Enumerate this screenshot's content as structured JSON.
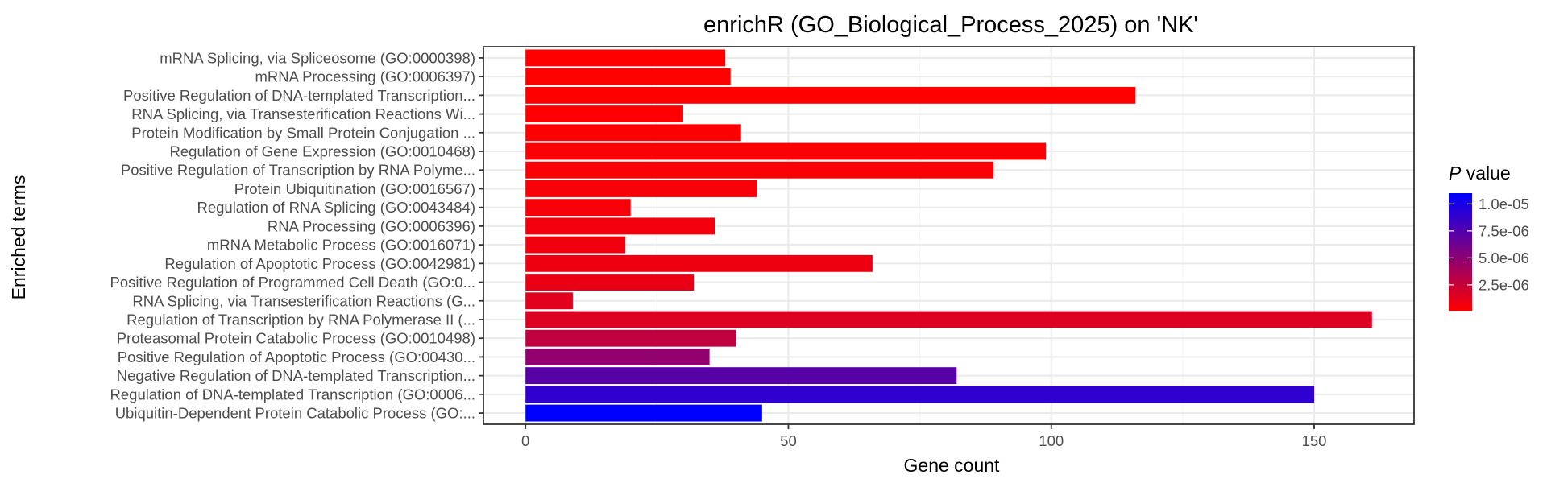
{
  "chart_data": {
    "type": "bar",
    "orientation": "horizontal",
    "title": "enrichR (GO_Biological_Process_2025) on 'NK'",
    "xlabel": "Gene count",
    "ylabel": "Enriched terms",
    "xlim": [
      -8,
      169
    ],
    "xticks": [
      0,
      50,
      100,
      150
    ],
    "xtick_labels": [
      "0",
      "50",
      "100",
      "150"
    ],
    "grid": true,
    "categories": [
      "mRNA Splicing, via Spliceosome (GO:0000398)",
      "mRNA Processing (GO:0006397)",
      "Positive Regulation of DNA-templated Transcription...",
      "RNA Splicing, via Transesterification Reactions Wi...",
      "Protein Modification by Small Protein Conjugation ...",
      "Regulation of Gene Expression (GO:0010468)",
      "Positive Regulation of Transcription by RNA Polyme...",
      "Protein Ubiquitination (GO:0016567)",
      "Regulation of RNA Splicing (GO:0043484)",
      "RNA Processing (GO:0006396)",
      "mRNA Metabolic Process (GO:0016071)",
      "Regulation of Apoptotic Process (GO:0042981)",
      "Positive Regulation of Programmed Cell Death (GO:0...",
      "RNA Splicing, via Transesterification Reactions (G...",
      "Regulation of Transcription by RNA Polymerase II (...",
      "Proteasomal Protein Catabolic Process (GO:0010498)",
      "Positive Regulation of Apoptotic Process (GO:00430...",
      "Negative Regulation of DNA-templated Transcription...",
      "Regulation of DNA-templated Transcription (GO:0006...",
      "Ubiquitin-Dependent Protein Catabolic Process (GO:..."
    ],
    "values": [
      38,
      39,
      116,
      30,
      41,
      99,
      89,
      44,
      20,
      36,
      19,
      66,
      32,
      9,
      161,
      40,
      35,
      82,
      150,
      45
    ],
    "pvalues": [
      1e-07,
      1e-07,
      1.2e-07,
      1.5e-07,
      2e-07,
      3e-07,
      3.5e-07,
      4e-07,
      5e-07,
      6e-07,
      7e-07,
      8e-07,
      1e-06,
      1.3e-06,
      1.6e-06,
      2.8e-06,
      4.8e-06,
      7.3e-06,
      9e-06,
      1.1e-05
    ],
    "colorbar": {
      "title_italic": "P",
      "title_rest": " value",
      "range": [
        1e-07,
        1.1e-05
      ],
      "low_color": "#ff0000",
      "high_color": "#0000ff",
      "ticks": [
        1e-05,
        7.5e-06,
        5e-06,
        2.5e-06
      ],
      "tick_labels": [
        "1.0e-05",
        "7.5e-06",
        "5.0e-06",
        "2.5e-06"
      ],
      "placement": "right"
    }
  }
}
